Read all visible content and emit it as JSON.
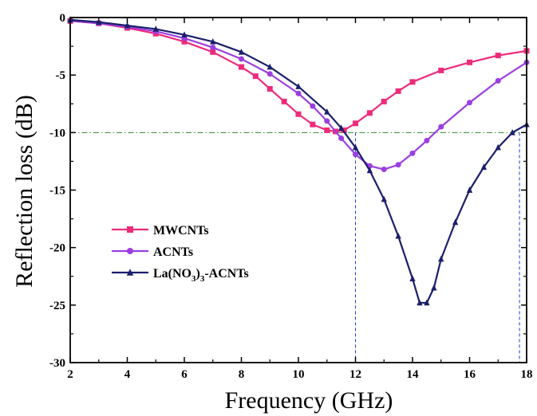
{
  "chart_data": {
    "type": "line",
    "title": "",
    "xlabel": "Frequency (GHz)",
    "ylabel": "Reflection loss (dB)",
    "xlim": [
      2,
      18
    ],
    "ylim": [
      -30,
      0
    ],
    "xticks": [
      2,
      4,
      6,
      8,
      10,
      12,
      14,
      16,
      18
    ],
    "yticks": [
      0,
      -5,
      -10,
      -15,
      -20,
      -25,
      -30
    ],
    "legend_position": "lower-left",
    "reference_line": {
      "y": -10,
      "style": "dash-dot",
      "color": "#2e8b2e"
    },
    "marker_lines": [
      {
        "x": 12.0,
        "color": "#1f3bd8"
      },
      {
        "x": 17.75,
        "color": "#1f3bd8"
      }
    ],
    "series": [
      {
        "name": "MWCNTs",
        "color": "#ee2a7b",
        "marker": "square",
        "x": [
          2,
          3,
          4,
          5,
          6,
          7,
          8,
          8.5,
          9,
          9.5,
          10,
          10.5,
          11,
          11.3,
          11.6,
          12,
          12.5,
          13,
          13.5,
          14,
          15,
          16,
          17,
          18
        ],
        "y": [
          -0.3,
          -0.5,
          -0.9,
          -1.4,
          -2.1,
          -3.0,
          -4.3,
          -5.1,
          -6.2,
          -7.3,
          -8.4,
          -9.3,
          -9.8,
          -9.9,
          -9.8,
          -9.2,
          -8.3,
          -7.3,
          -6.4,
          -5.6,
          -4.6,
          -3.9,
          -3.3,
          -2.9
        ]
      },
      {
        "name": "ACNTs",
        "color": "#9b3ee0",
        "marker": "circle",
        "x": [
          2,
          3,
          4,
          5,
          6,
          7,
          8,
          9,
          10,
          10.5,
          11,
          11.5,
          12,
          12.5,
          13,
          13.5,
          14,
          14.5,
          15,
          16,
          17,
          18
        ],
        "y": [
          -0.3,
          -0.5,
          -0.8,
          -1.2,
          -1.8,
          -2.6,
          -3.6,
          -4.9,
          -6.6,
          -7.7,
          -9.0,
          -10.5,
          -11.9,
          -12.9,
          -13.2,
          -12.8,
          -11.8,
          -10.7,
          -9.5,
          -7.4,
          -5.5,
          -3.9
        ]
      },
      {
        "name": "La(NO3)3-ACNTs",
        "legend_label": {
          "prefix": "La(NO",
          "subscript_1": "3",
          "mid": ")",
          "subscript_2": "3",
          "suffix": "-ACNTs"
        },
        "color": "#1a1f6b",
        "marker": "triangle",
        "x": [
          2,
          3,
          4,
          5,
          6,
          7,
          8,
          9,
          10,
          11,
          11.5,
          12,
          12.5,
          13,
          13.5,
          14,
          14.25,
          14.5,
          14.75,
          15,
          15.5,
          16,
          16.5,
          17,
          17.5,
          18
        ],
        "y": [
          -0.2,
          -0.4,
          -0.7,
          -1.0,
          -1.5,
          -2.1,
          -3.0,
          -4.3,
          -6.0,
          -8.2,
          -9.6,
          -11.3,
          -13.3,
          -15.8,
          -19.0,
          -22.7,
          -24.8,
          -24.8,
          -23.5,
          -21.0,
          -17.8,
          -15.0,
          -13.0,
          -11.3,
          -10.0,
          -9.3
        ]
      }
    ]
  }
}
